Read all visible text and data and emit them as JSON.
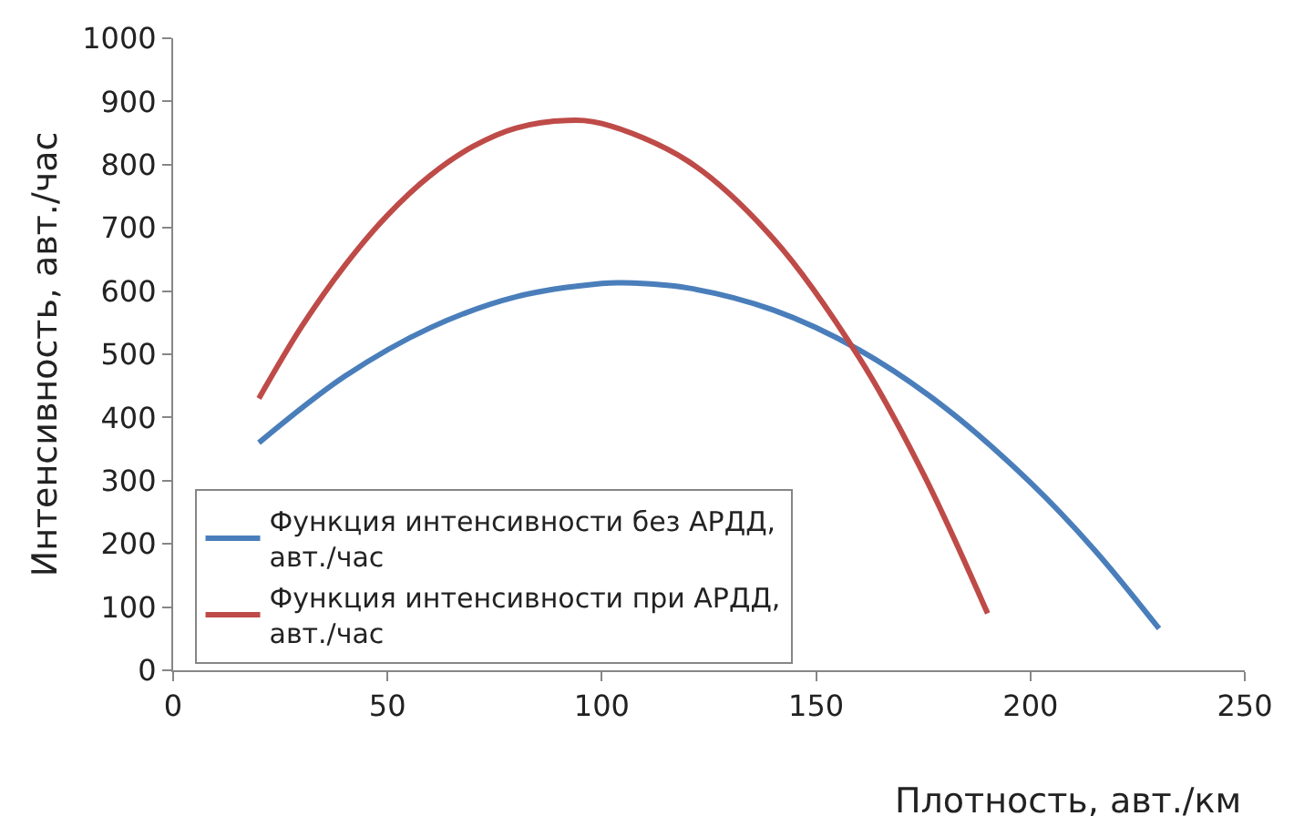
{
  "chart_data": {
    "type": "line",
    "xlabel": "Плотность, авт./км",
    "ylabel": "Интенсивность, авт./час",
    "xlim": [
      0,
      250
    ],
    "xticks": [
      0,
      50,
      100,
      150,
      200,
      250
    ],
    "ylim": [
      0,
      1000
    ],
    "yticks": [
      0,
      100,
      200,
      300,
      400,
      500,
      600,
      700,
      800,
      900,
      1000
    ],
    "legend": "bottom left",
    "marker": "none",
    "line_style": "solid",
    "series": [
      {
        "name": "Функция интенсивности без АРДД, авт./час",
        "color": "#4a7ebb",
        "x": [
          20,
          40,
          60,
          80,
          100,
          105,
          120,
          140,
          160,
          180,
          200,
          215,
          230
        ],
        "values": [
          360,
          465,
          542,
          591,
          612,
          613,
          605,
          570,
          507,
          416,
          297,
          190,
          66
        ]
      },
      {
        "name": "Функция интенсивности при АРДД, авт./час",
        "color": "#be4b48",
        "x": [
          20,
          30,
          40,
          50,
          60,
          70,
          80,
          92,
          100,
          120,
          140,
          160,
          175,
          190
        ],
        "values": [
          430,
          544,
          640,
          720,
          783,
          829,
          858,
          870,
          865,
          806,
          683,
          495,
          311,
          90
        ]
      }
    ]
  }
}
